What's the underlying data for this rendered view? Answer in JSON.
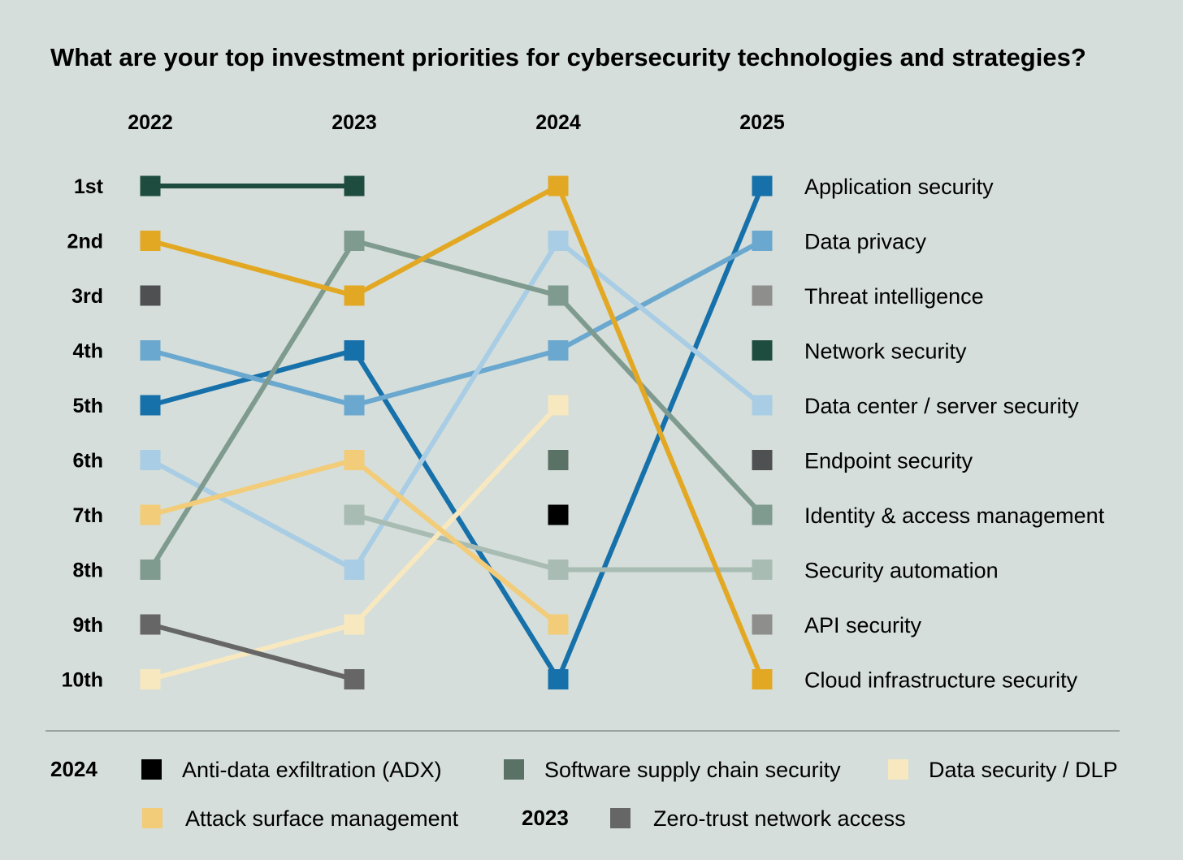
{
  "chart_data": {
    "type": "line",
    "title": "What are your top investment priorities for cybersecurity technologies and strategies?",
    "x": [
      "2022",
      "2023",
      "2024",
      "2025"
    ],
    "y_ticks": [
      "1st",
      "2nd",
      "3rd",
      "4th",
      "5th",
      "6th",
      "7th",
      "8th",
      "9th",
      "10th"
    ],
    "y_range": [
      1,
      10
    ],
    "y_reversed": true,
    "grid": false,
    "series": [
      {
        "name": "Application security",
        "color": "#1670aa",
        "values": [
          5,
          4,
          10,
          1
        ]
      },
      {
        "name": "Data privacy",
        "color": "#6aa8cf",
        "values": [
          4,
          5,
          4,
          2
        ]
      },
      {
        "name": "Threat intelligence",
        "color": "#8e8e8c",
        "values": [
          null,
          null,
          null,
          3
        ]
      },
      {
        "name": "Network security",
        "color": "#1e4d3f",
        "values": [
          1,
          1,
          null,
          4
        ]
      },
      {
        "name": "Data center / server security",
        "color": "#a9cde4",
        "values": [
          6,
          8,
          2,
          5
        ]
      },
      {
        "name": "Endpoint security",
        "color": "#4f5051",
        "values": [
          3,
          null,
          null,
          6
        ]
      },
      {
        "name": "Identity & access management",
        "color": "#7f9a8e",
        "values": [
          8,
          2,
          3,
          7
        ]
      },
      {
        "name": "Security automation",
        "color": "#a8bcb4",
        "values": [
          null,
          7,
          8,
          8
        ]
      },
      {
        "name": "API security",
        "color": "#8e8e8c",
        "values": [
          null,
          null,
          null,
          9
        ]
      },
      {
        "name": "Cloud infrastructure security",
        "color": "#e3a823",
        "values": [
          2,
          3,
          1,
          10
        ]
      },
      {
        "name": "Anti-data exfiltration (ADX)",
        "color": "#000000",
        "values": [
          null,
          null,
          7,
          null
        ]
      },
      {
        "name": "Software supply chain security",
        "color": "#5a7265",
        "values": [
          null,
          null,
          6,
          null
        ]
      },
      {
        "name": "Data security / DLP",
        "color": "#f8e8c0",
        "values": [
          10,
          9,
          5,
          null
        ]
      },
      {
        "name": "Attack surface management",
        "color": "#f2cc78",
        "values": [
          7,
          6,
          9,
          null
        ]
      },
      {
        "name": "Zero-trust network access",
        "color": "#666667",
        "values": [
          9,
          10,
          null,
          null
        ]
      }
    ],
    "legend": {
      "placement": "bottom",
      "groups": [
        {
          "label": "2024",
          "items": [
            "Anti-data exfiltration (ADX)",
            "Software supply chain security",
            "Data security / DLP",
            "Attack surface management"
          ]
        },
        {
          "label": "2023",
          "items": [
            "Zero-trust network access"
          ]
        }
      ]
    }
  }
}
